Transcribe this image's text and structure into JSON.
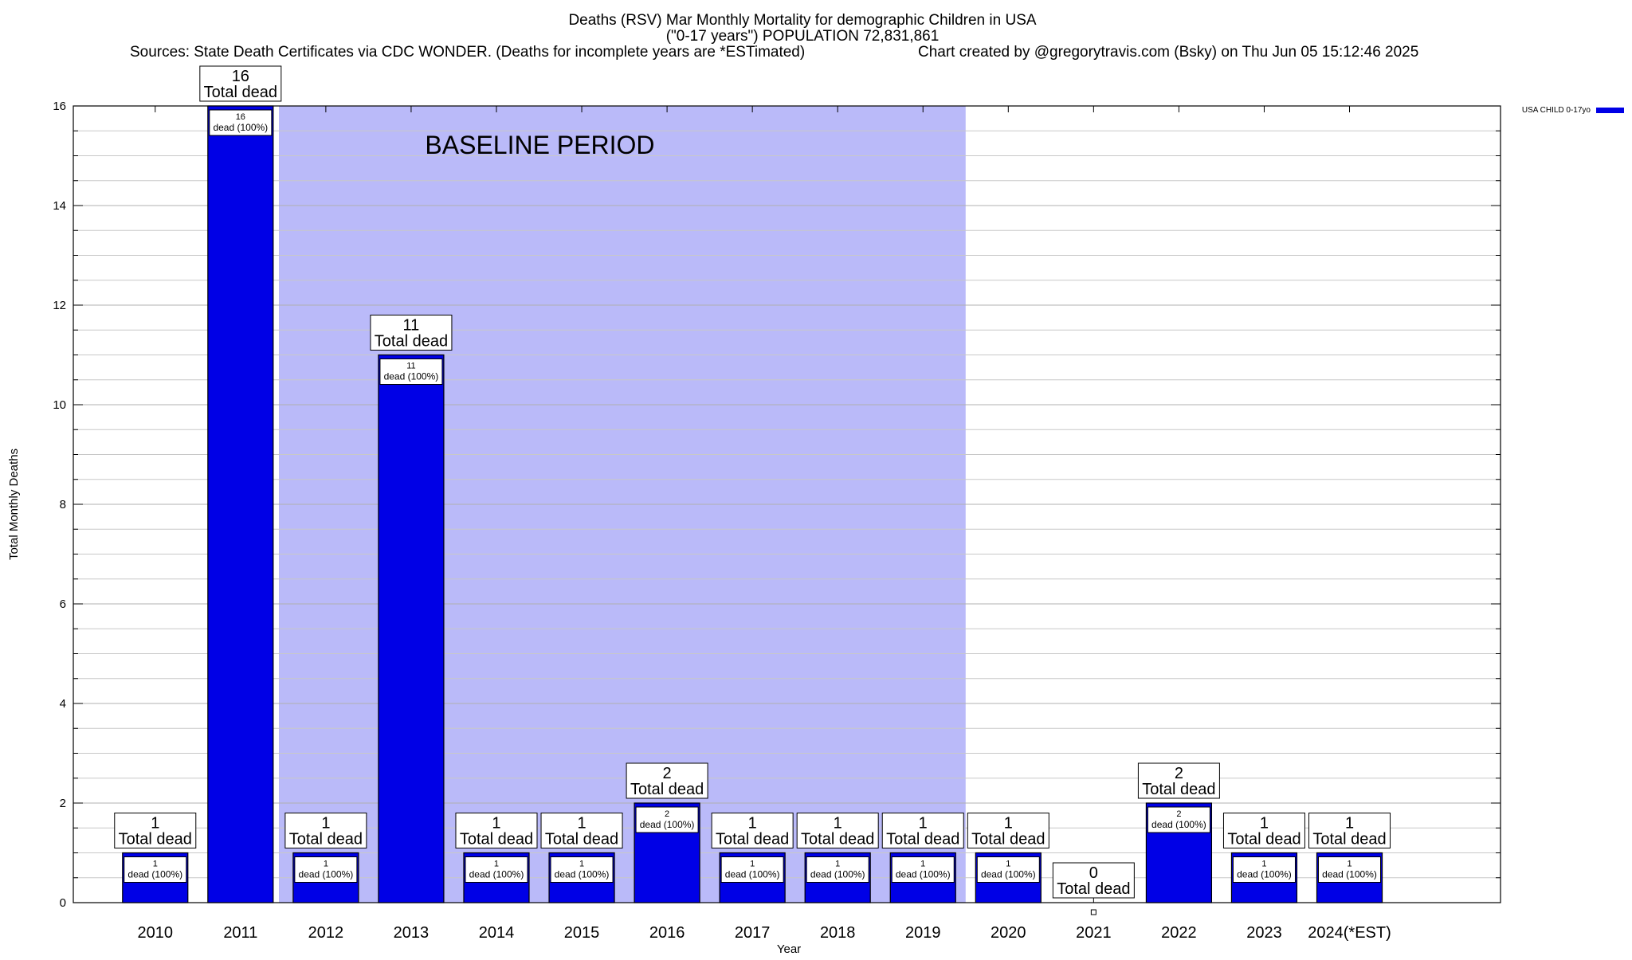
{
  "title_line1": "Deaths (RSV) Mar Monthly Mortality for demographic Children in USA",
  "title_line2": "(\"0-17 years\") POPULATION 72,831,861",
  "subtitle_sources": "Sources: State Death Certificates via CDC WONDER. (Deaths for incomplete years are *ESTimated)",
  "subtitle_credit": "Chart created by @gregorytravis.com (Bsky) on Thu Jun 05 15:12:46 2025",
  "baseline_label": "BASELINE PERIOD",
  "colors": {
    "bar": "#0000e6",
    "bar_stroke": "#000000",
    "baseline_fill": "#babaf9",
    "grid": "#c8c8c8",
    "legend_swatch": "#0000e6"
  },
  "chart_data": {
    "type": "bar",
    "categories": [
      "2010",
      "2011",
      "2012",
      "2013",
      "2014",
      "2015",
      "2016",
      "2017",
      "2018",
      "2019",
      "2020",
      "2021",
      "2022",
      "2023",
      "2024(*EST)"
    ],
    "series": [
      {
        "name": "USA CHILD 0-17yo",
        "values": [
          1,
          16,
          1,
          11,
          1,
          1,
          2,
          1,
          1,
          1,
          1,
          0,
          2,
          1,
          1
        ]
      }
    ],
    "bar_labels": [
      "1\ndead (100%)",
      "16\ndead (100%)",
      "1\ndead (100%)",
      "11\ndead (100%)",
      "1\ndead (100%)",
      "1\ndead (100%)",
      "2\ndead (100%)",
      "1\ndead (100%)",
      "1\ndead (100%)",
      "1\ndead (100%)",
      "1\ndead (100%)",
      "",
      "2\ndead (100%)",
      "1\ndead (100%)",
      "1\ndead (100%)"
    ],
    "total_labels": [
      "1\nTotal dead",
      "16\nTotal dead",
      "1\nTotal dead",
      "11\nTotal dead",
      "1\nTotal dead",
      "1\nTotal dead",
      "2\nTotal dead",
      "1\nTotal dead",
      "1\nTotal dead",
      "1\nTotal dead",
      "1\nTotal dead",
      "0\nTotal dead",
      "2\nTotal dead",
      "1\nTotal dead",
      "1\nTotal dead"
    ],
    "baseline_period": [
      "2012",
      "2019"
    ],
    "xlabel": "Year",
    "ylabel": "Total Monthly Deaths",
    "ylim": [
      0,
      16
    ],
    "yticks": [
      0,
      2,
      4,
      6,
      8,
      10,
      12,
      14,
      16
    ],
    "grid": true,
    "legend_position": "top-right"
  }
}
